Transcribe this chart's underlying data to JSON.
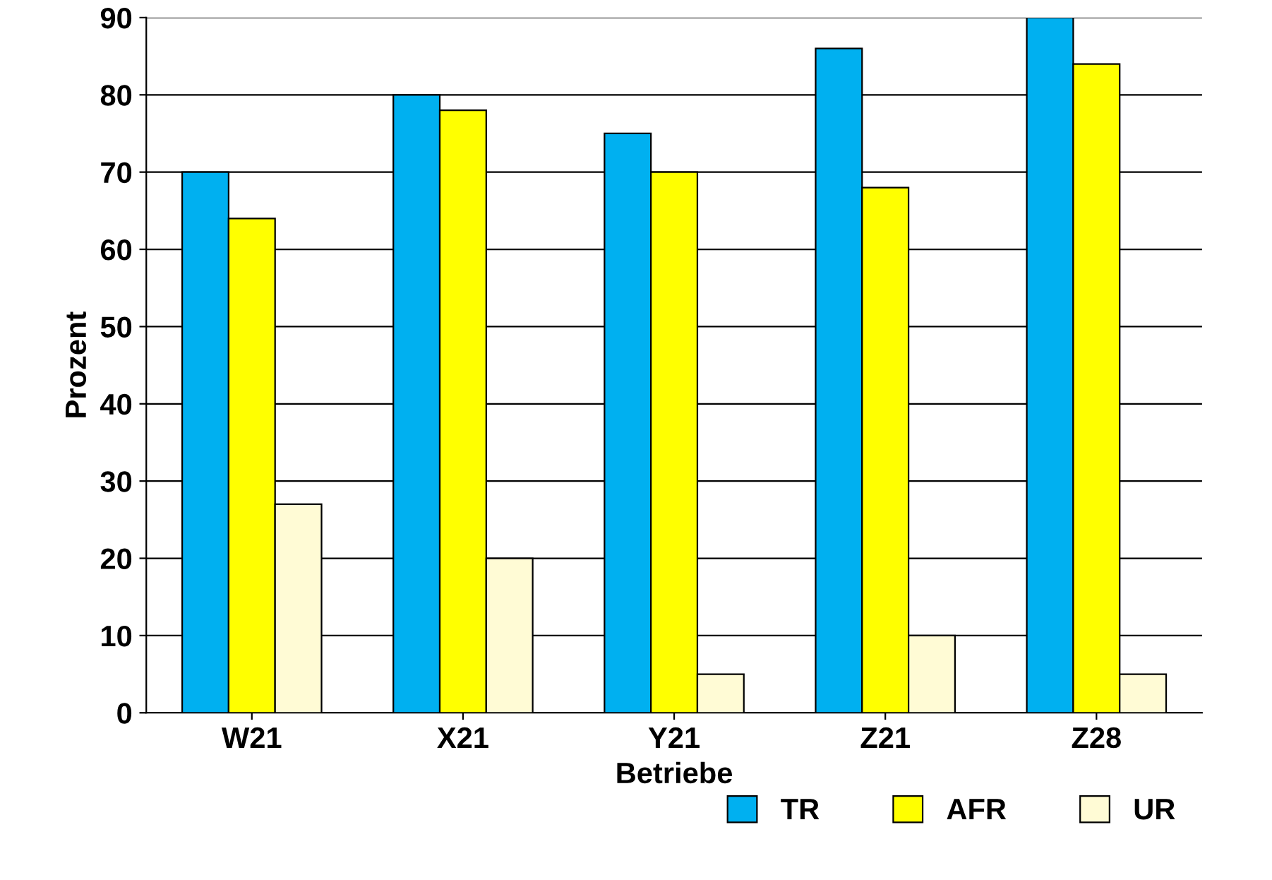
{
  "chart_data": {
    "type": "bar",
    "xlabel": "Betriebe",
    "ylabel": "Prozent",
    "categories": [
      "W21",
      "X21",
      "Y21",
      "Z21",
      "Z28"
    ],
    "series": [
      {
        "name": "TR",
        "color": "#00b0f0",
        "values": [
          70,
          80,
          75,
          86,
          90
        ]
      },
      {
        "name": "AFR",
        "color": "#ffff00",
        "values": [
          64,
          78,
          70,
          68,
          84
        ]
      },
      {
        "name": "UR",
        "color": "#fffbd5",
        "values": [
          27,
          20,
          5,
          10,
          5
        ]
      }
    ],
    "ylim": [
      0,
      90
    ],
    "yticks": [
      0,
      10,
      20,
      30,
      40,
      50,
      60,
      70,
      80,
      90
    ],
    "grid": "y",
    "legend": "bottom right"
  }
}
